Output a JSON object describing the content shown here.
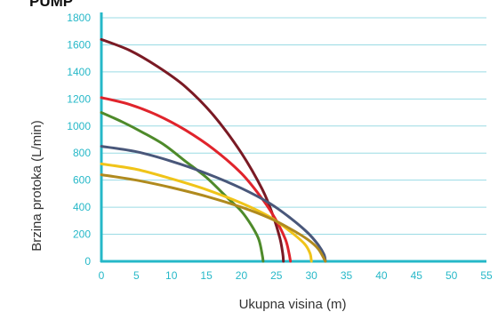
{
  "header_text": "PUMP",
  "colors": {
    "tick_text": "#26b8c8",
    "axis": "#26b8c8",
    "grid": "#9adbe4",
    "title_text": "#333333"
  },
  "chart_data": {
    "type": "line",
    "title": "",
    "xlabel": "Ukupna visina (m)",
    "ylabel": "Brzina protoka (L/min)",
    "xlim": [
      0,
      55
    ],
    "ylim": [
      0,
      1800
    ],
    "xticks": [
      0,
      5,
      10,
      15,
      20,
      25,
      30,
      35,
      40,
      45,
      50,
      55
    ],
    "yticks": [
      0,
      200,
      400,
      600,
      800,
      1000,
      1200,
      1400,
      1600,
      1800
    ],
    "grid": {
      "horizontal": true,
      "vertical": false
    },
    "series": [
      {
        "color": "#7a1a24",
        "points": [
          [
            0,
            1640
          ],
          [
            4,
            1560
          ],
          [
            8,
            1440
          ],
          [
            12,
            1290
          ],
          [
            16,
            1080
          ],
          [
            20,
            800
          ],
          [
            23,
            530
          ],
          [
            24.5,
            340
          ],
          [
            25.5,
            170
          ],
          [
            25.9,
            60
          ],
          [
            26,
            0
          ]
        ]
      },
      {
        "color": "#e0242c",
        "points": [
          [
            0,
            1210
          ],
          [
            4,
            1160
          ],
          [
            8,
            1080
          ],
          [
            12,
            970
          ],
          [
            16,
            830
          ],
          [
            20,
            650
          ],
          [
            23,
            460
          ],
          [
            25,
            300
          ],
          [
            26.3,
            160
          ],
          [
            26.8,
            60
          ],
          [
            27,
            0
          ]
        ]
      },
      {
        "color": "#4e8a2a",
        "points": [
          [
            0,
            1100
          ],
          [
            3,
            1030
          ],
          [
            6,
            950
          ],
          [
            9,
            860
          ],
          [
            12,
            740
          ],
          [
            15,
            620
          ],
          [
            18,
            470
          ],
          [
            20,
            370
          ],
          [
            21.5,
            260
          ],
          [
            22.5,
            160
          ],
          [
            23,
            40
          ],
          [
            23.1,
            0
          ]
        ]
      },
      {
        "color": "#49577a",
        "points": [
          [
            0,
            850
          ],
          [
            5,
            810
          ],
          [
            10,
            740
          ],
          [
            15,
            650
          ],
          [
            20,
            540
          ],
          [
            24,
            430
          ],
          [
            27,
            320
          ],
          [
            29.5,
            210
          ],
          [
            31,
            120
          ],
          [
            31.8,
            50
          ],
          [
            32,
            0
          ]
        ]
      },
      {
        "color": "#f0c419",
        "points": [
          [
            0,
            720
          ],
          [
            5,
            680
          ],
          [
            10,
            610
          ],
          [
            15,
            530
          ],
          [
            20,
            430
          ],
          [
            24,
            330
          ],
          [
            27,
            220
          ],
          [
            29,
            130
          ],
          [
            29.8,
            60
          ],
          [
            30,
            0
          ]
        ]
      },
      {
        "color": "#b08a1e",
        "points": [
          [
            0,
            640
          ],
          [
            5,
            600
          ],
          [
            10,
            545
          ],
          [
            15,
            480
          ],
          [
            20,
            400
          ],
          [
            24,
            320
          ],
          [
            27,
            240
          ],
          [
            29.5,
            160
          ],
          [
            31,
            90
          ],
          [
            32,
            0
          ]
        ]
      }
    ]
  }
}
